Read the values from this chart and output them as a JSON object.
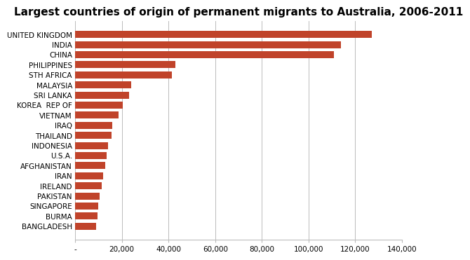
{
  "title": "Largest countries of origin of permanent migrants to Australia, 2006-2011",
  "countries": [
    "UNITED KINGDOM",
    "INDIA",
    "CHINA",
    "PHILIPPINES",
    "STH AFRICA",
    "MALAYSIA",
    "SRI LANKA",
    "KOREA  REP OF",
    "VIETNAM",
    "IRAQ",
    "THAILAND",
    "INDONESIA",
    "U.S.A.",
    "AFGHANISTAN",
    "IRAN",
    "IRELAND",
    "PAKISTAN",
    "SINGAPORE",
    "BURMA",
    "BANGLADESH"
  ],
  "values": [
    127000,
    114000,
    111000,
    43000,
    41500,
    24000,
    23000,
    20500,
    18500,
    16000,
    15500,
    14000,
    13500,
    13000,
    12000,
    11500,
    10500,
    10000,
    9500,
    9000
  ],
  "bar_color": "#C0432A",
  "background_color": "#FFFFFF",
  "xlim": [
    0,
    140000
  ],
  "xtick_values": [
    0,
    20000,
    40000,
    60000,
    80000,
    100000,
    120000,
    140000
  ],
  "xtick_labels": [
    "-",
    "20,000",
    "40,000",
    "60,000",
    "80,000",
    "100,000",
    "120,000",
    "140,000"
  ],
  "grid_color": "#BBBBBB",
  "title_fontsize": 11,
  "label_fontsize": 7.5,
  "bar_height": 0.7
}
